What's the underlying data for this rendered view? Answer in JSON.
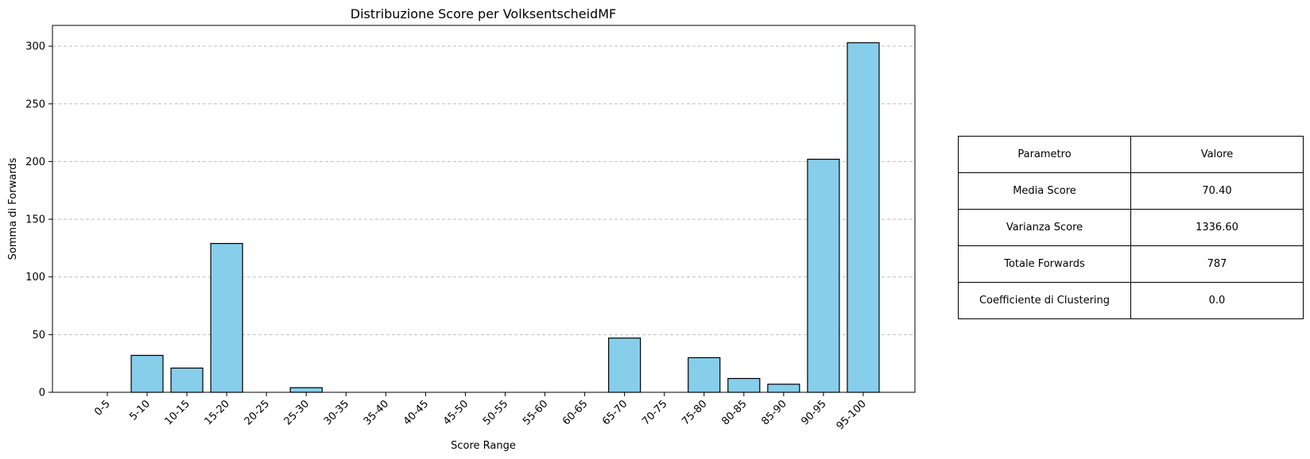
{
  "chart_data": {
    "type": "bar",
    "title": "Distribuzione Score per VolksentscheidMF",
    "xlabel": "Score Range",
    "ylabel": "Somma di Forwards",
    "categories": [
      "0-5",
      "5-10",
      "10-15",
      "15-20",
      "20-25",
      "25-30",
      "30-35",
      "35-40",
      "40-45",
      "45-50",
      "50-55",
      "55-60",
      "60-65",
      "65-70",
      "70-75",
      "75-80",
      "80-85",
      "85-90",
      "90-95",
      "95-100"
    ],
    "values": [
      0,
      32,
      21,
      129,
      0,
      4,
      0,
      0,
      0,
      0,
      0,
      0,
      0,
      47,
      0,
      30,
      12,
      7,
      202,
      303
    ],
    "ylim": [
      0,
      318
    ],
    "yticks": [
      "0",
      "50",
      "100",
      "150",
      "200",
      "250",
      "300"
    ],
    "grid": "y-dashed",
    "bar_color": "#87ceeb",
    "edge_color": "#000000",
    "grid_color": "#bfbfbf"
  },
  "table": {
    "header": [
      "Parametro",
      "Valore"
    ],
    "rows": [
      [
        "Media Score",
        "70.40"
      ],
      [
        "Varianza Score",
        "1336.60"
      ],
      [
        "Totale Forwards",
        "787"
      ],
      [
        "Coefficiente di Clustering",
        "0.0"
      ]
    ]
  }
}
